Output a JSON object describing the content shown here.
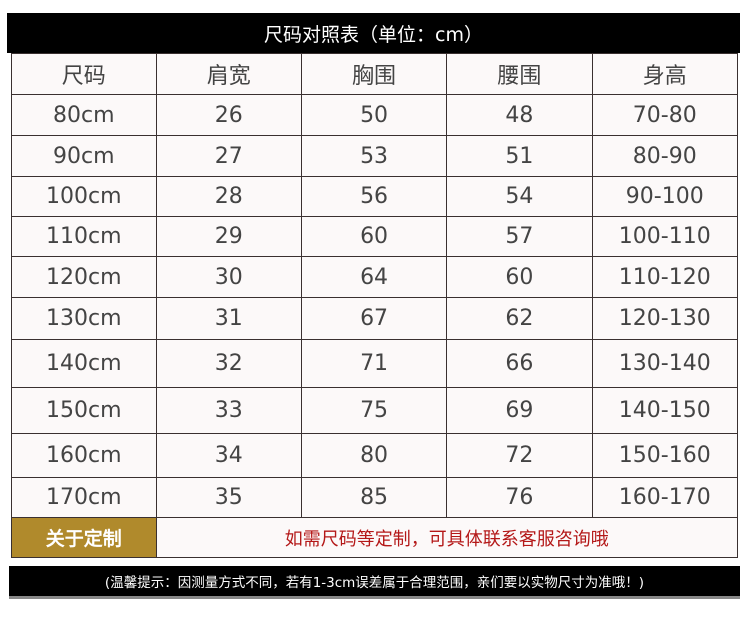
{
  "title": "尺码对照表（单位：cm）",
  "headers": [
    "尺码",
    "肩宽",
    "胸围",
    "腰围",
    "身高"
  ],
  "rows": [
    [
      "80cm",
      "26",
      "50",
      "48",
      "70-80"
    ],
    [
      "90cm",
      "27",
      "53",
      "51",
      "80-90"
    ],
    [
      "100cm",
      "28",
      "56",
      "54",
      "90-100"
    ],
    [
      "110cm",
      "29",
      "60",
      "57",
      "100-110"
    ],
    [
      "120cm",
      "30",
      "64",
      "60",
      "110-120"
    ],
    [
      "130cm",
      "31",
      "67",
      "62",
      "120-130"
    ],
    [
      "140cm",
      "32",
      "71",
      "66",
      "130-140"
    ],
    [
      "150cm",
      "33",
      "75",
      "69",
      "140-150"
    ],
    [
      "160cm",
      "34",
      "80",
      "72",
      "150-160"
    ],
    [
      "170cm",
      "35",
      "85",
      "76",
      "160-170"
    ]
  ],
  "custom": {
    "label": "关于定制",
    "text": "如需尺码等定制，可具体联系客服咨询哦"
  },
  "footer_note": "(温馨提示：因测量方式不同，若有1-3cm误差属于合理范围，亲们要以实物尺寸为准哦！)",
  "colors": {
    "title_bg": "#000000",
    "custom_label_bg": "#b08a2c",
    "custom_text": "#b41818"
  }
}
